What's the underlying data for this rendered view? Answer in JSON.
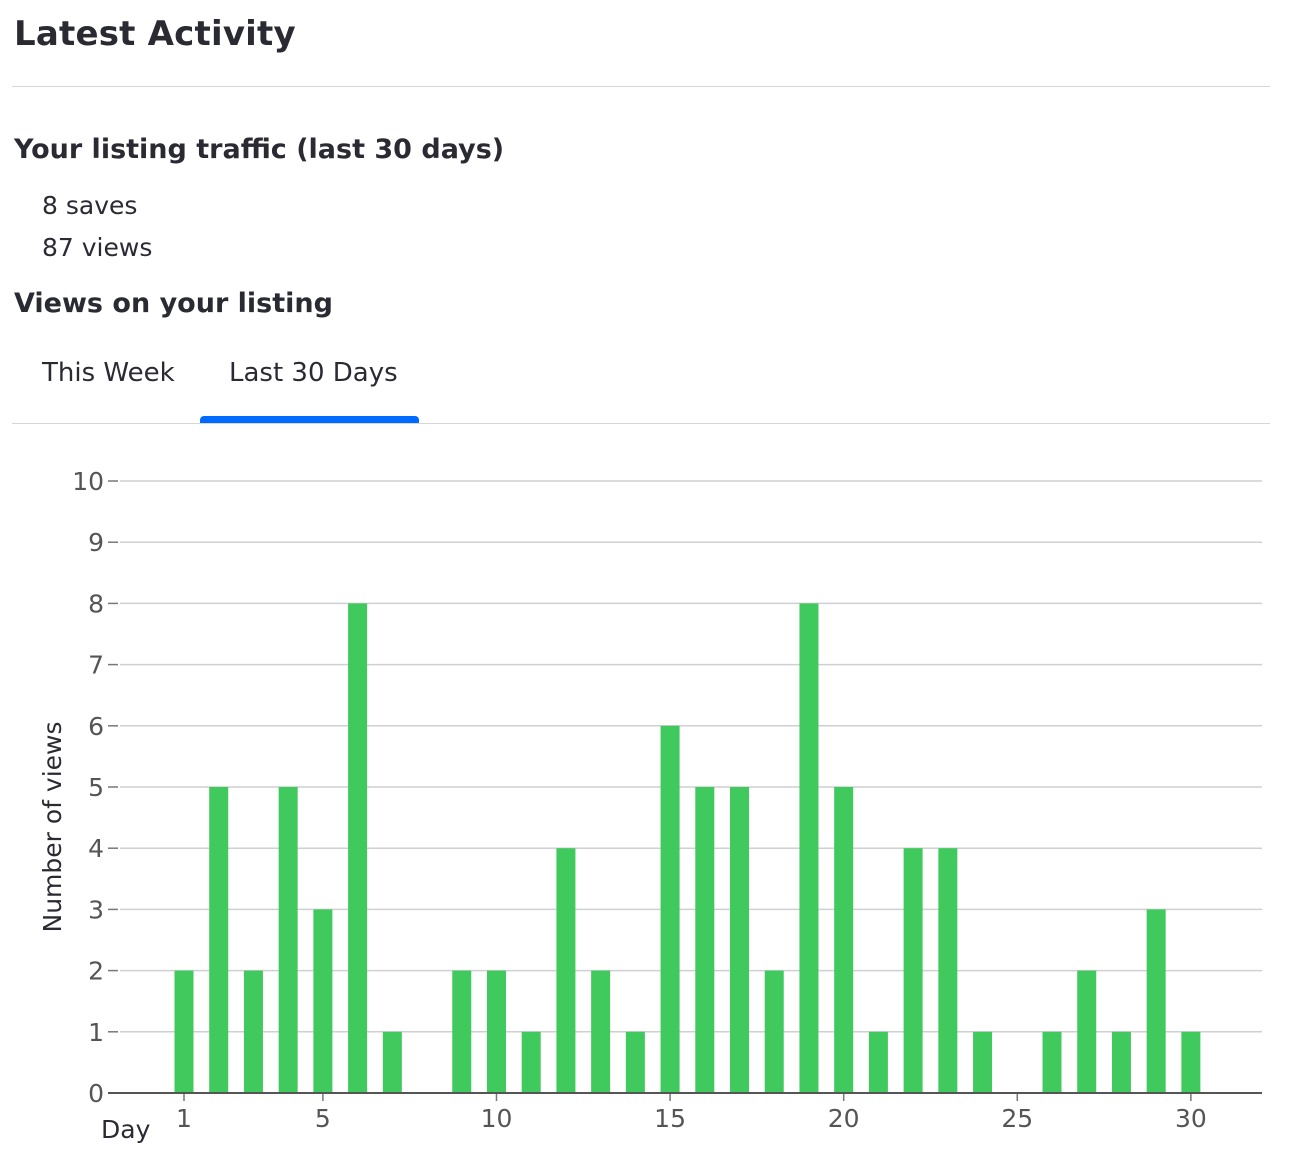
{
  "header": {
    "title": "Latest Activity"
  },
  "traffic": {
    "heading": "Your listing traffic (last 30 days)",
    "saves": "8 saves",
    "views": "87 views"
  },
  "views_section": {
    "heading": "Views on your listing",
    "tabs": [
      {
        "label": "This Week",
        "active": false
      },
      {
        "label": "Last 30 Days",
        "active": true
      }
    ]
  },
  "colors": {
    "bar": "#40c95c",
    "tab_indicator": "#006aff",
    "grid": "#cfcfd4",
    "text": "#2a2a33"
  },
  "chart_data": {
    "type": "bar",
    "xlabel": "Day",
    "ylabel": "Number of views",
    "x": [
      1,
      2,
      3,
      4,
      5,
      6,
      7,
      8,
      9,
      10,
      11,
      12,
      13,
      14,
      15,
      16,
      17,
      18,
      19,
      20,
      21,
      22,
      23,
      24,
      25,
      26,
      27,
      28,
      29,
      30
    ],
    "values": [
      2,
      5,
      2,
      5,
      3,
      8,
      1,
      0,
      2,
      2,
      1,
      4,
      2,
      1,
      6,
      5,
      5,
      2,
      8,
      5,
      1,
      4,
      4,
      1,
      0,
      1,
      2,
      1,
      3,
      1
    ],
    "ylim": [
      0,
      10
    ],
    "yticks": [
      0,
      1,
      2,
      3,
      4,
      5,
      6,
      7,
      8,
      9,
      10
    ],
    "xticks": [
      1,
      5,
      10,
      15,
      20,
      25,
      30
    ],
    "grid": true,
    "legend": "none"
  }
}
